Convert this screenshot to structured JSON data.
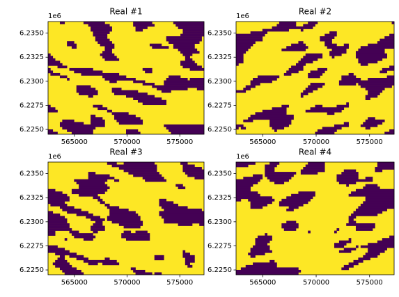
{
  "chart_data": [
    {
      "type": "raster",
      "title": "Real #1",
      "y_offset_label": "1e6",
      "colors": [
        "#440154",
        "#fde725"
      ],
      "xlim": [
        562500,
        577300
      ],
      "xticks": [
        565000,
        570000,
        575000
      ],
      "ylim": [
        6.2245,
        6.2362
      ],
      "yticks": [
        {
          "value": 6.225,
          "label": "6.2250"
        },
        {
          "value": 6.2275,
          "label": "6.2275"
        },
        {
          "value": 6.23,
          "label": "6.2300"
        },
        {
          "value": 6.2325,
          "label": "6.2325"
        },
        {
          "value": 6.235,
          "label": "6.2350"
        }
      ]
    },
    {
      "type": "raster",
      "title": "Real #2",
      "y_offset_label": "1e6",
      "colors": [
        "#440154",
        "#fde725"
      ],
      "xlim": [
        562500,
        577300
      ],
      "xticks": [
        565000,
        570000,
        575000
      ],
      "ylim": [
        6.2245,
        6.2362
      ],
      "yticks": [
        {
          "value": 6.225,
          "label": "6.2250"
        },
        {
          "value": 6.2275,
          "label": "6.2275"
        },
        {
          "value": 6.23,
          "label": "6.2300"
        },
        {
          "value": 6.2325,
          "label": "6.2325"
        },
        {
          "value": 6.235,
          "label": "6.2350"
        }
      ]
    },
    {
      "type": "raster",
      "title": "Real #3",
      "y_offset_label": "1e6",
      "colors": [
        "#440154",
        "#fde725"
      ],
      "xlim": [
        562500,
        577300
      ],
      "xticks": [
        565000,
        570000,
        575000
      ],
      "ylim": [
        6.2245,
        6.2362
      ],
      "yticks": [
        {
          "value": 6.225,
          "label": "6.2250"
        },
        {
          "value": 6.2275,
          "label": "6.2275"
        },
        {
          "value": 6.23,
          "label": "6.2300"
        },
        {
          "value": 6.2325,
          "label": "6.2325"
        },
        {
          "value": 6.235,
          "label": "6.2350"
        }
      ]
    },
    {
      "type": "raster",
      "title": "Real #4",
      "y_offset_label": "1e6",
      "colors": [
        "#440154",
        "#fde725"
      ],
      "xlim": [
        562500,
        577300
      ],
      "xticks": [
        565000,
        570000,
        575000
      ],
      "ylim": [
        6.2245,
        6.2362
      ],
      "yticks": [
        {
          "value": 6.225,
          "label": "6.2250"
        },
        {
          "value": 6.2275,
          "label": "6.2275"
        },
        {
          "value": 6.23,
          "label": "6.2300"
        },
        {
          "value": 6.2325,
          "label": "6.2325"
        },
        {
          "value": 6.235,
          "label": "6.2350"
        }
      ]
    }
  ]
}
